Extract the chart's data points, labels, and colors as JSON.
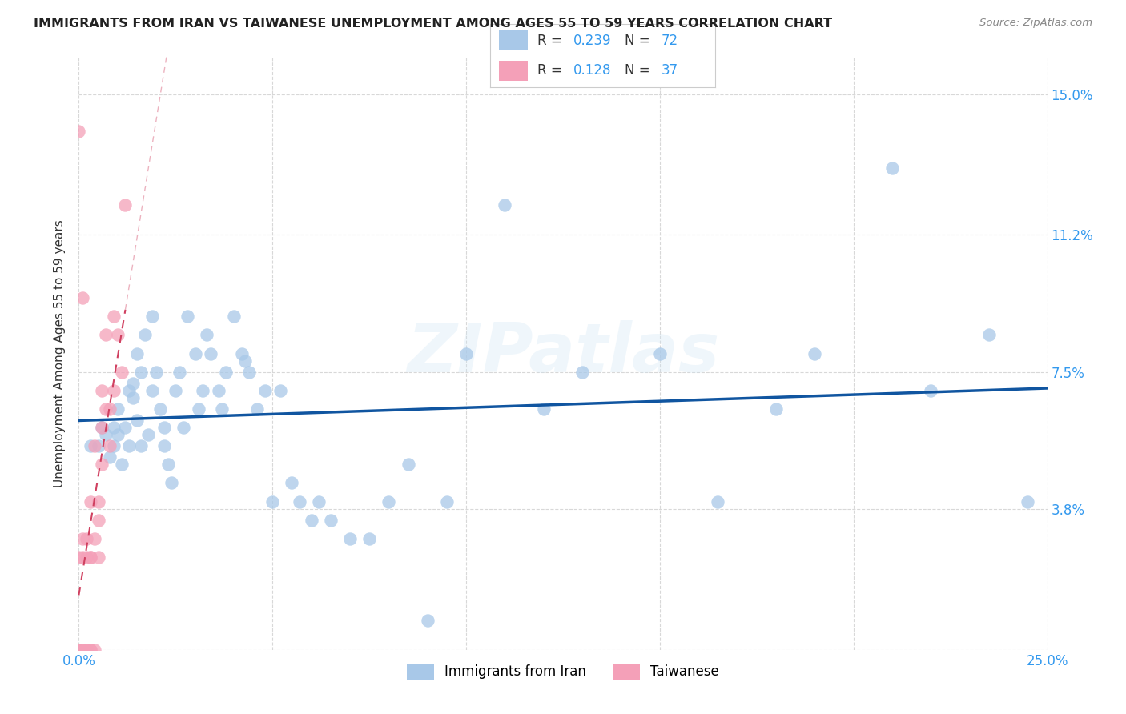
{
  "title": "IMMIGRANTS FROM IRAN VS TAIWANESE UNEMPLOYMENT AMONG AGES 55 TO 59 YEARS CORRELATION CHART",
  "source": "Source: ZipAtlas.com",
  "ylabel": "Unemployment Among Ages 55 to 59 years",
  "xlim": [
    0.0,
    0.25
  ],
  "ylim": [
    0.0,
    0.16
  ],
  "R_iran": 0.239,
  "N_iran": 72,
  "R_taiwanese": 0.128,
  "N_taiwanese": 37,
  "color_iran": "#a8c8e8",
  "color_taiwanese": "#f4a0b8",
  "line_color_iran": "#1055a0",
  "line_color_taiwanese": "#d04060",
  "grid_color": "#d8d8d8",
  "bg_color": "#ffffff",
  "axis_label_color": "#3399ee",
  "text_color": "#222222",
  "iran_x": [
    0.003,
    0.005,
    0.006,
    0.007,
    0.008,
    0.009,
    0.009,
    0.01,
    0.01,
    0.011,
    0.012,
    0.013,
    0.013,
    0.014,
    0.014,
    0.015,
    0.015,
    0.016,
    0.016,
    0.017,
    0.018,
    0.019,
    0.019,
    0.02,
    0.021,
    0.022,
    0.022,
    0.023,
    0.024,
    0.025,
    0.026,
    0.027,
    0.028,
    0.03,
    0.031,
    0.032,
    0.033,
    0.034,
    0.036,
    0.037,
    0.038,
    0.04,
    0.042,
    0.043,
    0.044,
    0.046,
    0.048,
    0.05,
    0.052,
    0.055,
    0.057,
    0.06,
    0.062,
    0.065,
    0.07,
    0.075,
    0.08,
    0.085,
    0.09,
    0.095,
    0.1,
    0.11,
    0.12,
    0.13,
    0.15,
    0.165,
    0.18,
    0.19,
    0.21,
    0.22,
    0.235,
    0.245
  ],
  "iran_y": [
    0.055,
    0.055,
    0.06,
    0.058,
    0.052,
    0.06,
    0.055,
    0.065,
    0.058,
    0.05,
    0.06,
    0.055,
    0.07,
    0.068,
    0.072,
    0.062,
    0.08,
    0.075,
    0.055,
    0.085,
    0.058,
    0.07,
    0.09,
    0.075,
    0.065,
    0.06,
    0.055,
    0.05,
    0.045,
    0.07,
    0.075,
    0.06,
    0.09,
    0.08,
    0.065,
    0.07,
    0.085,
    0.08,
    0.07,
    0.065,
    0.075,
    0.09,
    0.08,
    0.078,
    0.075,
    0.065,
    0.07,
    0.04,
    0.07,
    0.045,
    0.04,
    0.035,
    0.04,
    0.035,
    0.03,
    0.03,
    0.04,
    0.05,
    0.008,
    0.04,
    0.08,
    0.12,
    0.065,
    0.075,
    0.08,
    0.04,
    0.065,
    0.08,
    0.13,
    0.07,
    0.085,
    0.04
  ],
  "taiwanese_x": [
    0.0,
    0.0,
    0.0,
    0.0,
    0.0,
    0.001,
    0.001,
    0.001,
    0.001,
    0.001,
    0.002,
    0.002,
    0.002,
    0.002,
    0.003,
    0.003,
    0.003,
    0.003,
    0.003,
    0.004,
    0.004,
    0.004,
    0.005,
    0.005,
    0.005,
    0.006,
    0.006,
    0.006,
    0.007,
    0.007,
    0.008,
    0.008,
    0.009,
    0.009,
    0.01,
    0.011,
    0.012
  ],
  "taiwanese_y": [
    0.0,
    0.0,
    0.0,
    0.025,
    0.14,
    0.0,
    0.0,
    0.025,
    0.03,
    0.095,
    0.0,
    0.0,
    0.025,
    0.03,
    0.0,
    0.0,
    0.025,
    0.025,
    0.04,
    0.0,
    0.03,
    0.055,
    0.025,
    0.035,
    0.04,
    0.05,
    0.06,
    0.07,
    0.065,
    0.085,
    0.055,
    0.065,
    0.07,
    0.09,
    0.085,
    0.075,
    0.12
  ],
  "watermark": "ZIPatlas",
  "legend_title_color": "#3399ee"
}
